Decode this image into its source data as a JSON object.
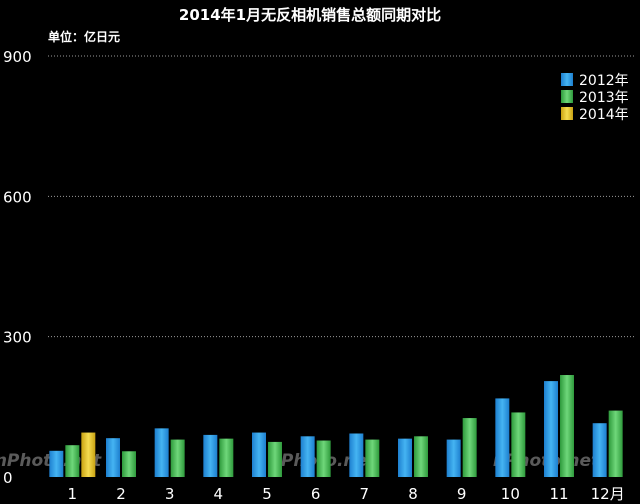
{
  "chart_data": {
    "type": "bar",
    "title": "2014年1月无反相机销售总额同期对比",
    "unit_label": "单位：亿日元",
    "categories": [
      "1",
      "2",
      "3",
      "4",
      "5",
      "6",
      "7",
      "8",
      "9",
      "10",
      "11",
      "12月"
    ],
    "ylim": [
      0,
      900
    ],
    "yticks": [
      0,
      300,
      600,
      900
    ],
    "grid": true,
    "legend_position": "top-right",
    "series": [
      {
        "name": "2012年",
        "color": "#3aa7e8",
        "values": [
          56,
          83,
          104,
          90,
          95,
          87,
          93,
          82,
          80,
          168,
          205,
          115
        ]
      },
      {
        "name": "2013年",
        "color": "#4fc25a",
        "values": [
          68,
          55,
          80,
          82,
          75,
          78,
          80,
          87,
          126,
          138,
          218,
          142
        ]
      },
      {
        "name": "2014年",
        "color": "#e8c72a",
        "values": [
          95,
          null,
          null,
          null,
          null,
          null,
          null,
          null,
          null,
          null,
          null,
          null
        ]
      }
    ],
    "watermarks": [
      "nPhoto.net",
      "nPhoto.net",
      "nPhoto.net"
    ]
  }
}
